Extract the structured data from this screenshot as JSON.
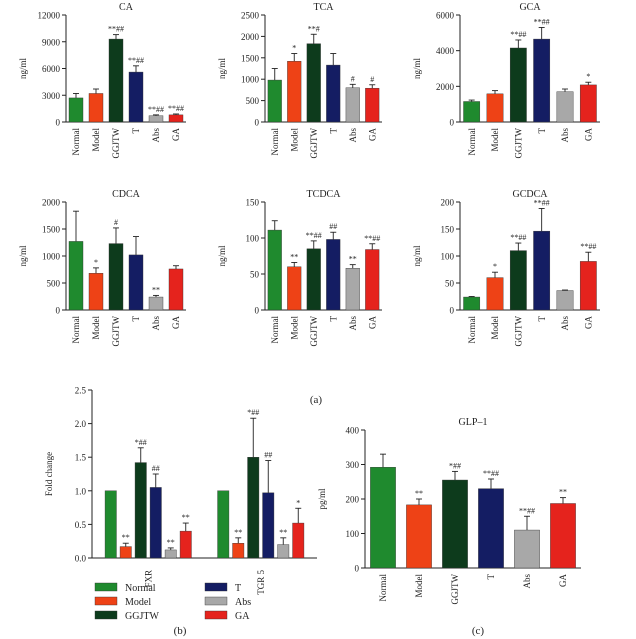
{
  "colors": {
    "Normal": "#1f8a2e",
    "Model": "#ee4216",
    "GGJTW": "#0d3b1c",
    "T": "#141d63",
    "Abs": "#a8a8a8",
    "GA": "#e5231d"
  },
  "panel_labels": {
    "a": "(a)",
    "b": "(b)",
    "c": "(c)"
  },
  "legend": [
    "Normal",
    "T",
    "Model",
    "Abs",
    "GGJTW",
    "GA"
  ],
  "chart_data": [
    {
      "id": "CA",
      "type": "bar",
      "title": "CA",
      "ylabel": "ng/ml",
      "categories": [
        "Normal",
        "Model",
        "GGJTW",
        "T",
        "Abs",
        "GA"
      ],
      "values": [
        2700,
        3200,
        9300,
        5600,
        700,
        800
      ],
      "errors": [
        500,
        500,
        500,
        700,
        100,
        100
      ],
      "annotations": [
        "",
        "",
        "**##",
        "**##",
        "**##",
        "**##"
      ],
      "ylim": [
        0,
        12000
      ],
      "yticks": [
        0,
        3000,
        6000,
        9000,
        12000
      ]
    },
    {
      "id": "TCA",
      "type": "bar",
      "title": "TCA",
      "ylabel": "ng/ml",
      "categories": [
        "Normal",
        "Model",
        "GGJTW",
        "T",
        "Abs",
        "GA"
      ],
      "values": [
        980,
        1420,
        1830,
        1330,
        800,
        790
      ],
      "errors": [
        270,
        180,
        220,
        270,
        80,
        80
      ],
      "annotations": [
        "",
        "*",
        "**#",
        "",
        "#",
        "#"
      ],
      "ylim": [
        0,
        2500
      ],
      "yticks": [
        0,
        500,
        1000,
        1500,
        2000,
        2500
      ]
    },
    {
      "id": "GCA",
      "type": "bar",
      "title": "GCA",
      "ylabel": "ng/ml",
      "categories": [
        "Normal",
        "Model",
        "GGJTW",
        "T",
        "Abs",
        "GA"
      ],
      "values": [
        1150,
        1580,
        4150,
        4650,
        1700,
        2080
      ],
      "errors": [
        80,
        180,
        450,
        650,
        150,
        150
      ],
      "annotations": [
        "",
        "",
        "**##",
        "**##",
        "",
        "*"
      ],
      "ylim": [
        0,
        6000
      ],
      "yticks": [
        0,
        2000,
        4000,
        6000
      ]
    },
    {
      "id": "CDCA",
      "type": "bar",
      "title": "CDCA",
      "ylabel": "ng/ml",
      "categories": [
        "Normal",
        "Model",
        "GGJTW",
        "T",
        "Abs",
        "GA"
      ],
      "values": [
        1270,
        680,
        1230,
        1020,
        240,
        760
      ],
      "errors": [
        560,
        100,
        290,
        340,
        30,
        60
      ],
      "annotations": [
        "",
        "*",
        "#",
        "",
        "**",
        ""
      ],
      "ylim": [
        0,
        2000
      ],
      "yticks": [
        0,
        500,
        1000,
        1500,
        2000
      ]
    },
    {
      "id": "TCDCA",
      "type": "bar",
      "title": "TCDCA",
      "ylabel": "ng/ml",
      "categories": [
        "Normal",
        "Model",
        "GGJTW",
        "T",
        "Abs",
        "GA"
      ],
      "values": [
        111,
        60,
        85,
        98,
        58,
        84
      ],
      "errors": [
        13,
        6,
        11,
        10,
        5,
        8
      ],
      "annotations": [
        "",
        "**",
        "**##",
        "##",
        "**",
        "**##"
      ],
      "ylim": [
        0,
        150
      ],
      "yticks": [
        0,
        50,
        100,
        150
      ]
    },
    {
      "id": "GCDCA",
      "type": "bar",
      "title": "GCDCA",
      "ylabel": "ng/ml",
      "categories": [
        "Normal",
        "Model",
        "GGJTW",
        "T",
        "Abs",
        "GA"
      ],
      "values": [
        24,
        60,
        110,
        146,
        36,
        90
      ],
      "errors": [
        1,
        10,
        14,
        42,
        1,
        17
      ],
      "annotations": [
        "",
        "*",
        "**##",
        "**##",
        "",
        "**##"
      ],
      "ylim": [
        0,
        200
      ],
      "yticks": [
        0,
        50,
        100,
        150,
        200
      ]
    },
    {
      "id": "fold",
      "type": "bar",
      "title": "",
      "ylabel": "Fold change",
      "categories": [
        "FXR",
        "TGR 5"
      ],
      "series": [
        {
          "name": "Normal",
          "values": [
            1.0,
            1.0
          ],
          "errors": [
            0,
            0
          ],
          "annotations": [
            "",
            ""
          ]
        },
        {
          "name": "Model",
          "values": [
            0.17,
            0.22
          ],
          "errors": [
            0.05,
            0.08
          ],
          "annotations": [
            "**",
            "**"
          ]
        },
        {
          "name": "GGJTW",
          "values": [
            1.42,
            1.5
          ],
          "errors": [
            0.22,
            0.58
          ],
          "annotations": [
            "*##",
            "*##"
          ]
        },
        {
          "name": "T",
          "values": [
            1.05,
            0.97
          ],
          "errors": [
            0.2,
            0.48
          ],
          "annotations": [
            "##",
            "##"
          ]
        },
        {
          "name": "Abs",
          "values": [
            0.12,
            0.2
          ],
          "errors": [
            0.03,
            0.1
          ],
          "annotations": [
            "**",
            "**"
          ]
        },
        {
          "name": "GA",
          "values": [
            0.4,
            0.52
          ],
          "errors": [
            0.12,
            0.22
          ],
          "annotations": [
            "**",
            "*"
          ]
        }
      ],
      "ylim": [
        0,
        2.5
      ],
      "yticks": [
        0.0,
        0.5,
        1.0,
        1.5,
        2.0,
        2.5
      ]
    },
    {
      "id": "GLP1",
      "type": "bar",
      "title": "GLP–1",
      "ylabel": "pg/ml",
      "categories": [
        "Normal",
        "Model",
        "GGJTW",
        "T",
        "Abs",
        "GA"
      ],
      "values": [
        292,
        183,
        255,
        230,
        110,
        187
      ],
      "errors": [
        38,
        17,
        25,
        28,
        40,
        17
      ],
      "annotations": [
        "",
        "**",
        "*##",
        "**##",
        "**##",
        "**"
      ],
      "ylim": [
        0,
        400
      ],
      "yticks": [
        0,
        100,
        200,
        300,
        400
      ]
    }
  ]
}
